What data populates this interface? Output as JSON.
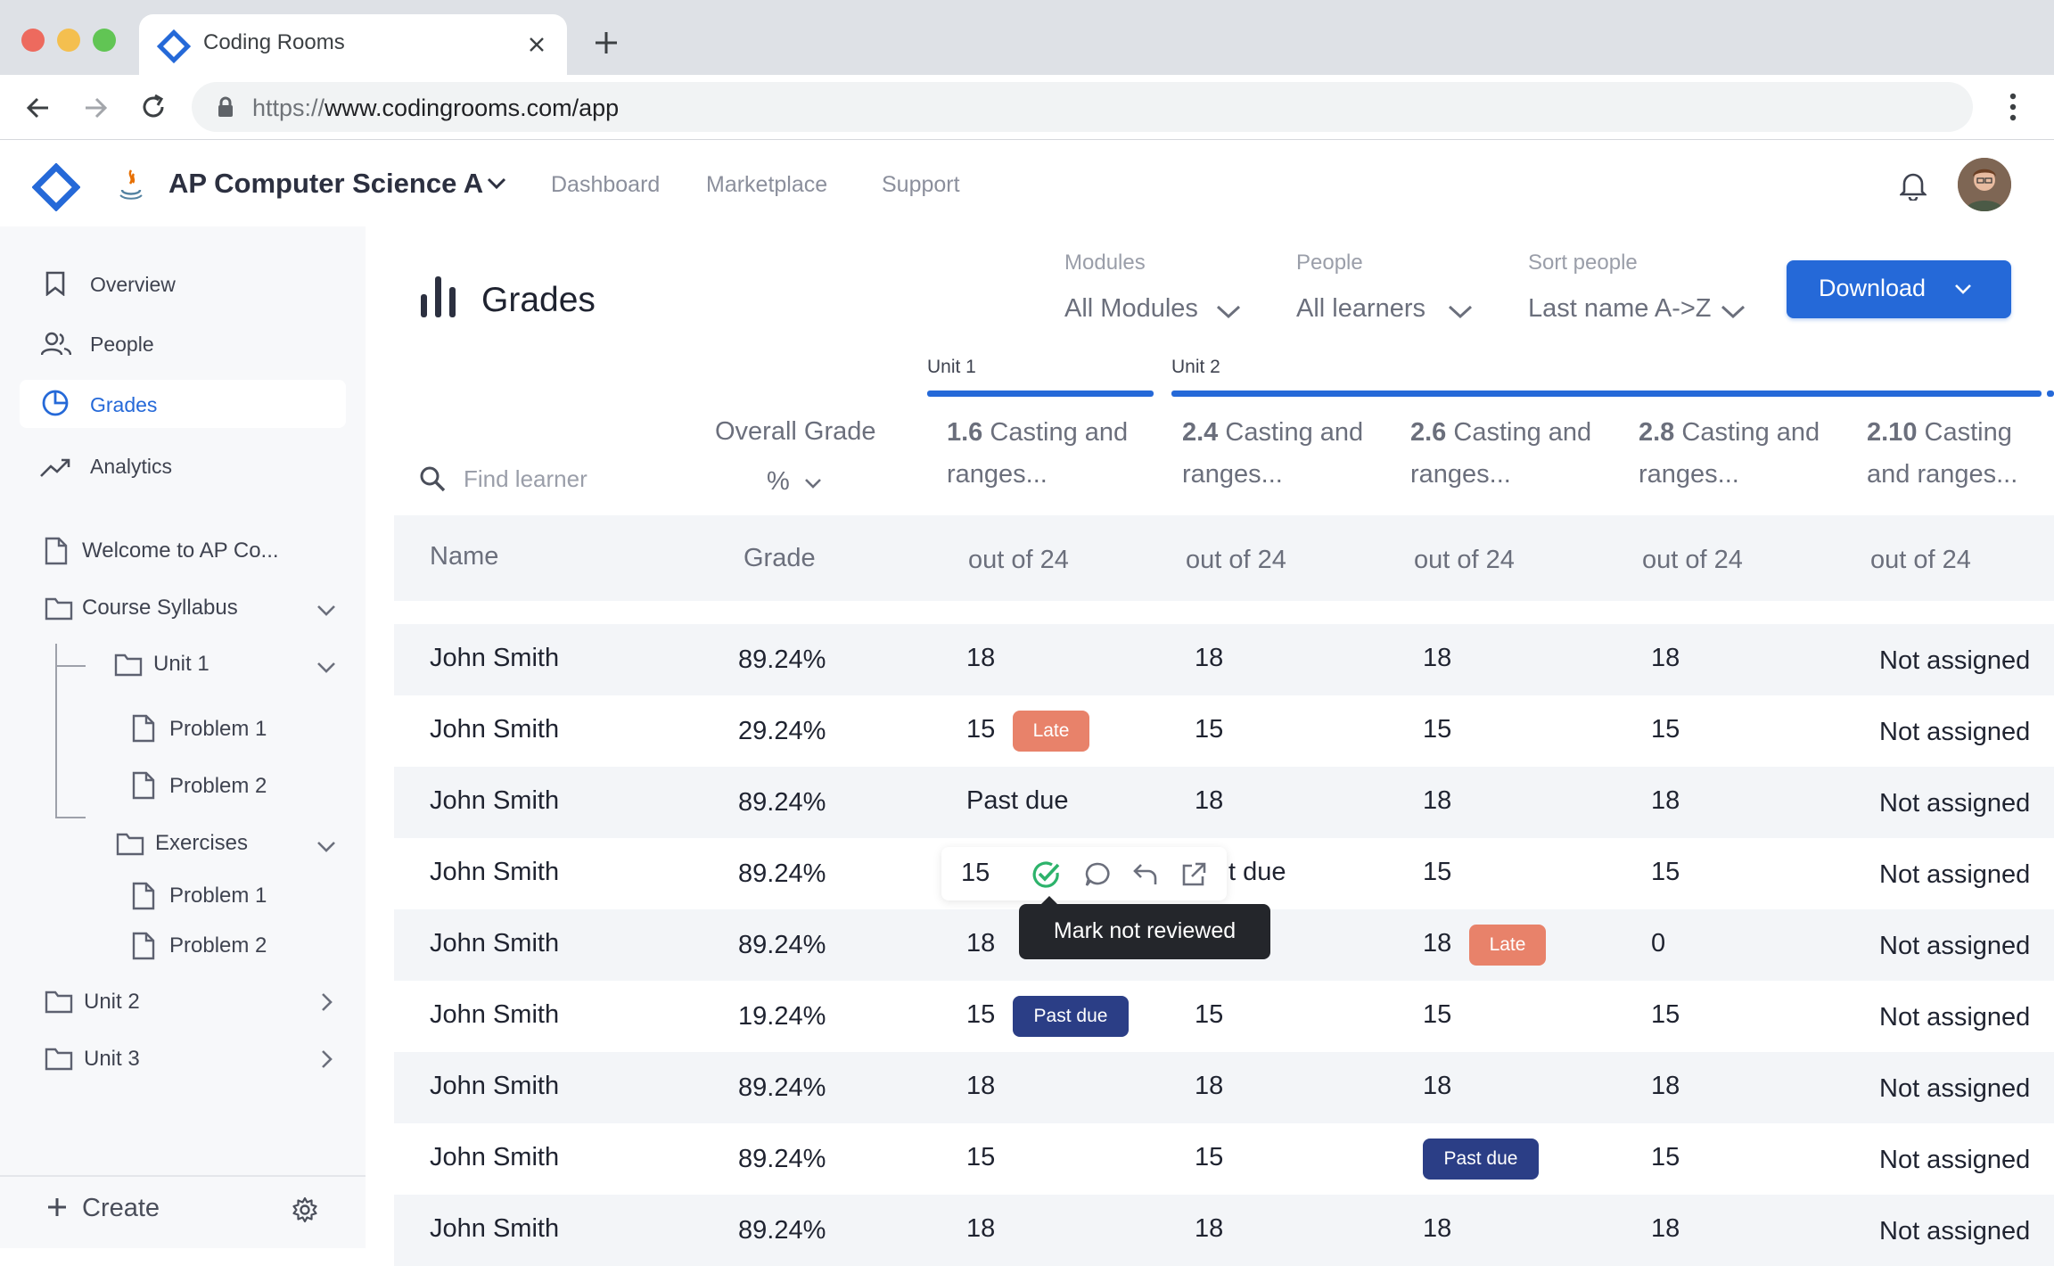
{
  "browser": {
    "tab_title": "Coding Rooms",
    "url_prefix": "https://",
    "url_domain": "www.codingrooms.com",
    "url_path": "/app",
    "new_tab_label": "+"
  },
  "header": {
    "course_title": "AP Computer Science A",
    "nav": [
      "Dashboard",
      "Marketplace",
      "Support"
    ]
  },
  "sidebar": {
    "items": [
      {
        "label": "Overview",
        "icon": "bookmark-icon"
      },
      {
        "label": "People",
        "icon": "people-icon"
      },
      {
        "label": "Grades",
        "icon": "pie-chart-icon",
        "active": true
      },
      {
        "label": "Analytics",
        "icon": "trending-icon"
      }
    ],
    "tree": {
      "welcome": "Welcome to AP Co...",
      "syllabus": "Course Syllabus",
      "unit1": "Unit 1",
      "problem1": "Problem 1",
      "problem2": "Problem 2",
      "exercises": "Exercises",
      "ex_problem1": "Problem 1",
      "ex_problem2": "Problem 2",
      "unit2": "Unit 2",
      "unit3": "Unit 3"
    },
    "create_label": "Create"
  },
  "grades": {
    "title": "Grades",
    "filters": {
      "modules_label": "Modules",
      "modules_value": "All Modules",
      "people_label": "People",
      "people_value": "All learners",
      "sort_label": "Sort people",
      "sort_value": "Last name A->Z"
    },
    "download_label": "Download",
    "unit1_label": "Unit 1",
    "unit2_label": "Unit 2",
    "search_placeholder": "Find learner",
    "overall_grade_label": "Overall Grade",
    "overall_unit": "%",
    "assignments": [
      {
        "num": "1.6",
        "name": "Casting and ranges..."
      },
      {
        "num": "2.4",
        "name": "Casting and ranges..."
      },
      {
        "num": "2.6",
        "name": "Casting and ranges..."
      },
      {
        "num": "2.8",
        "name": "Casting and ranges..."
      },
      {
        "num": "2.10",
        "name": "Casting and ranges..."
      }
    ],
    "table_header": {
      "name": "Name",
      "grade": "Grade",
      "out_of": [
        "out of 24",
        "out of 24",
        "out of 24",
        "out of 24",
        "out of 24"
      ]
    },
    "rows": [
      {
        "name": "John Smith",
        "grade": "89.24%",
        "scores": [
          "18",
          "18",
          "18",
          "18",
          "Not assigned"
        ],
        "badges": {}
      },
      {
        "name": "John Smith",
        "grade": "29.24%",
        "scores": [
          "15",
          "15",
          "15",
          "15",
          "Not assigned"
        ],
        "badges": {
          "0": "Late"
        }
      },
      {
        "name": "John Smith",
        "grade": "89.24%",
        "scores": [
          "Past due",
          "18",
          "18",
          "18",
          "Not assigned"
        ],
        "badges": {}
      },
      {
        "name": "John Smith",
        "grade": "89.24%",
        "scores": [
          "15",
          "t due",
          "15",
          "15",
          "Not assigned"
        ],
        "badges": {}
      },
      {
        "name": "John Smith",
        "grade": "89.24%",
        "scores": [
          "18",
          "",
          "18",
          "0",
          "Not assigned"
        ],
        "badges": {
          "2": "Late"
        }
      },
      {
        "name": "John Smith",
        "grade": "19.24%",
        "scores": [
          "15",
          "15",
          "15",
          "15",
          "Not assigned"
        ],
        "badges": {
          "0": "Past due"
        }
      },
      {
        "name": "John Smith",
        "grade": "89.24%",
        "scores": [
          "18",
          "18",
          "18",
          "18",
          "Not assigned"
        ],
        "badges": {}
      },
      {
        "name": "John Smith",
        "grade": "89.24%",
        "scores": [
          "15",
          "15",
          "",
          "15",
          "Not assigned"
        ],
        "badges": {
          "2": "Past due"
        }
      },
      {
        "name": "John Smith",
        "grade": "89.24%",
        "scores": [
          "18",
          "18",
          "18",
          "18",
          "Not assigned"
        ],
        "badges": {}
      }
    ],
    "tooltip": "Mark not reviewed"
  },
  "colors": {
    "accent": "#2569d8",
    "late": "#e8826a",
    "past_due": "#2b3e86",
    "sidebar_bg": "#f7f8fa"
  }
}
